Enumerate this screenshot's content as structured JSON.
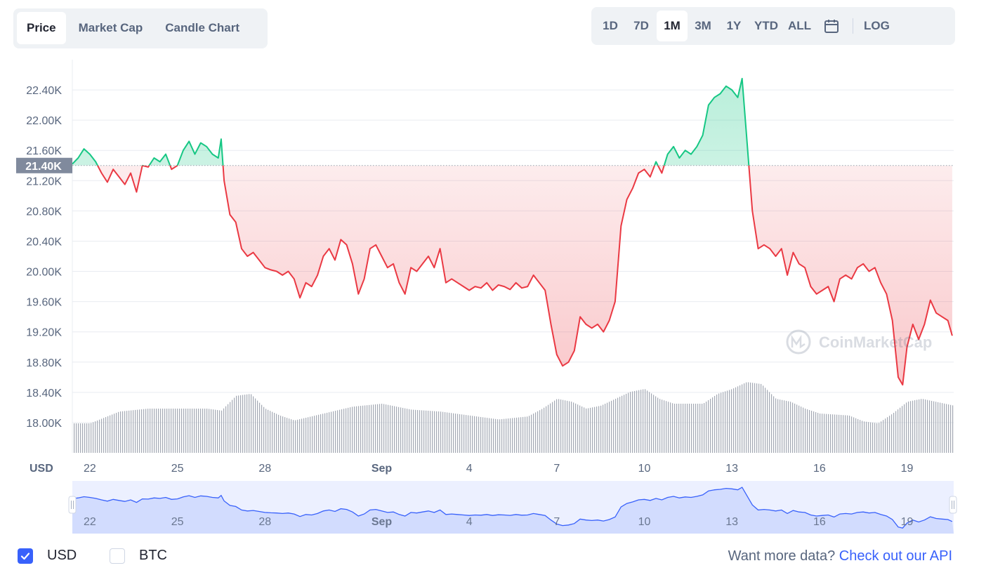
{
  "tabs": [
    "Price",
    "Market Cap",
    "Candle Chart"
  ],
  "active_tab": "Price",
  "ranges": [
    "1D",
    "7D",
    "1M",
    "3M",
    "1Y",
    "YTD",
    "ALL"
  ],
  "active_range": "1M",
  "icons": {
    "calendar": "calendar-icon",
    "logo": "coinmarketcap-logo-icon",
    "check": "check-icon"
  },
  "log_label": "LOG",
  "watermark": "CoinMarketCap",
  "currency_label": "USD",
  "legend": {
    "usd": "USD",
    "btc": "BTC",
    "usd_checked": true,
    "btc_checked": false
  },
  "api_prompt": "Want more data?",
  "api_link": "Check out our API",
  "colors": {
    "up": "#16c784",
    "down": "#ea3943",
    "navigator": "#3861fb",
    "volume": "#a3a8b3",
    "grid": "#e9ecf1",
    "axis_text": "#58667e",
    "accent": "#3861fb"
  },
  "chart_data": {
    "type": "line",
    "ylabel": "USD",
    "ylim": [
      17.6,
      22.8
    ],
    "yticks": [
      18.0,
      18.4,
      18.8,
      19.2,
      19.6,
      20.0,
      20.4,
      20.8,
      21.2,
      21.6,
      22.0,
      22.4
    ],
    "ytick_labels": [
      "18.00K",
      "18.40K",
      "18.80K",
      "19.20K",
      "19.60K",
      "20.00K",
      "20.40K",
      "20.80K",
      "21.20K",
      "21.60K",
      "22.00K",
      "22.40K"
    ],
    "xlim": [
      21.4,
      51.6
    ],
    "x_ticks": [
      22,
      25,
      28,
      32,
      35,
      38,
      41,
      44,
      47,
      50
    ],
    "x_tick_labels": [
      "22",
      "25",
      "28",
      "Sep",
      "4",
      "7",
      "10",
      "13",
      "16",
      "19"
    ],
    "baseline": 21.4,
    "baseline_label": "21.40K",
    "price_unit": "thousand USD",
    "price_series": [
      [
        21.4,
        21.42
      ],
      [
        21.6,
        21.5
      ],
      [
        21.8,
        21.62
      ],
      [
        22,
        21.55
      ],
      [
        22.2,
        21.45
      ],
      [
        22.4,
        21.3
      ],
      [
        22.6,
        21.18
      ],
      [
        22.8,
        21.35
      ],
      [
        23,
        21.25
      ],
      [
        23.2,
        21.15
      ],
      [
        23.4,
        21.3
      ],
      [
        23.6,
        21.05
      ],
      [
        23.8,
        21.4
      ],
      [
        24,
        21.38
      ],
      [
        24.2,
        21.5
      ],
      [
        24.4,
        21.45
      ],
      [
        24.6,
        21.55
      ],
      [
        24.8,
        21.35
      ],
      [
        25,
        21.4
      ],
      [
        25.2,
        21.6
      ],
      [
        25.4,
        21.72
      ],
      [
        25.6,
        21.55
      ],
      [
        25.8,
        21.7
      ],
      [
        26,
        21.65
      ],
      [
        26.2,
        21.55
      ],
      [
        26.4,
        21.5
      ],
      [
        26.5,
        21.75
      ],
      [
        26.6,
        21.2
      ],
      [
        26.8,
        20.75
      ],
      [
        27,
        20.65
      ],
      [
        27.2,
        20.3
      ],
      [
        27.4,
        20.2
      ],
      [
        27.6,
        20.25
      ],
      [
        27.8,
        20.15
      ],
      [
        28,
        20.05
      ],
      [
        28.2,
        20.02
      ],
      [
        28.4,
        20.0
      ],
      [
        28.6,
        19.95
      ],
      [
        28.8,
        20.0
      ],
      [
        29,
        19.9
      ],
      [
        29.2,
        19.65
      ],
      [
        29.4,
        19.85
      ],
      [
        29.6,
        19.8
      ],
      [
        29.8,
        19.95
      ],
      [
        30,
        20.2
      ],
      [
        30.2,
        20.3
      ],
      [
        30.4,
        20.15
      ],
      [
        30.6,
        20.42
      ],
      [
        30.8,
        20.35
      ],
      [
        31,
        20.1
      ],
      [
        31.2,
        19.7
      ],
      [
        31.4,
        19.9
      ],
      [
        31.6,
        20.3
      ],
      [
        31.8,
        20.35
      ],
      [
        32,
        20.2
      ],
      [
        32.2,
        20.05
      ],
      [
        32.4,
        20.1
      ],
      [
        32.6,
        19.85
      ],
      [
        32.8,
        19.7
      ],
      [
        33,
        20.05
      ],
      [
        33.2,
        20.0
      ],
      [
        33.4,
        20.1
      ],
      [
        33.6,
        20.2
      ],
      [
        33.8,
        20.05
      ],
      [
        34,
        20.3
      ],
      [
        34.2,
        19.85
      ],
      [
        34.4,
        19.9
      ],
      [
        34.6,
        19.85
      ],
      [
        34.8,
        19.8
      ],
      [
        35,
        19.75
      ],
      [
        35.2,
        19.8
      ],
      [
        35.4,
        19.78
      ],
      [
        35.6,
        19.85
      ],
      [
        35.8,
        19.75
      ],
      [
        36,
        19.82
      ],
      [
        36.2,
        19.8
      ],
      [
        36.4,
        19.76
      ],
      [
        36.6,
        19.85
      ],
      [
        36.8,
        19.78
      ],
      [
        37,
        19.8
      ],
      [
        37.2,
        19.95
      ],
      [
        37.4,
        19.85
      ],
      [
        37.6,
        19.75
      ],
      [
        37.8,
        19.3
      ],
      [
        38,
        18.9
      ],
      [
        38.2,
        18.75
      ],
      [
        38.4,
        18.8
      ],
      [
        38.6,
        18.95
      ],
      [
        38.8,
        19.4
      ],
      [
        39,
        19.3
      ],
      [
        39.2,
        19.25
      ],
      [
        39.4,
        19.3
      ],
      [
        39.6,
        19.2
      ],
      [
        39.8,
        19.35
      ],
      [
        40,
        19.6
      ],
      [
        40.2,
        20.6
      ],
      [
        40.4,
        20.95
      ],
      [
        40.6,
        21.1
      ],
      [
        40.8,
        21.3
      ],
      [
        41,
        21.35
      ],
      [
        41.2,
        21.25
      ],
      [
        41.4,
        21.45
      ],
      [
        41.6,
        21.3
      ],
      [
        41.8,
        21.55
      ],
      [
        42,
        21.65
      ],
      [
        42.2,
        21.5
      ],
      [
        42.4,
        21.6
      ],
      [
        42.6,
        21.55
      ],
      [
        42.8,
        21.65
      ],
      [
        43,
        21.8
      ],
      [
        43.2,
        22.2
      ],
      [
        43.4,
        22.3
      ],
      [
        43.6,
        22.35
      ],
      [
        43.8,
        22.45
      ],
      [
        44,
        22.4
      ],
      [
        44.2,
        22.3
      ],
      [
        44.35,
        22.55
      ],
      [
        44.5,
        21.8
      ],
      [
        44.7,
        20.8
      ],
      [
        44.9,
        20.3
      ],
      [
        45.1,
        20.35
      ],
      [
        45.3,
        20.3
      ],
      [
        45.5,
        20.2
      ],
      [
        45.7,
        20.3
      ],
      [
        45.9,
        19.95
      ],
      [
        46.1,
        20.25
      ],
      [
        46.3,
        20.1
      ],
      [
        46.5,
        20.05
      ],
      [
        46.7,
        19.8
      ],
      [
        46.9,
        19.7
      ],
      [
        47.1,
        19.75
      ],
      [
        47.3,
        19.8
      ],
      [
        47.5,
        19.6
      ],
      [
        47.7,
        19.9
      ],
      [
        47.9,
        19.95
      ],
      [
        48.1,
        19.9
      ],
      [
        48.3,
        20.05
      ],
      [
        48.5,
        20.1
      ],
      [
        48.7,
        20.0
      ],
      [
        48.9,
        20.05
      ],
      [
        49.1,
        19.85
      ],
      [
        49.3,
        19.7
      ],
      [
        49.5,
        19.35
      ],
      [
        49.7,
        18.6
      ],
      [
        49.85,
        18.5
      ],
      [
        50,
        19.0
      ],
      [
        50.2,
        19.3
      ],
      [
        50.4,
        19.1
      ],
      [
        50.6,
        19.3
      ],
      [
        50.8,
        19.62
      ],
      [
        51,
        19.45
      ],
      [
        51.2,
        19.4
      ],
      [
        51.4,
        19.35
      ],
      [
        51.55,
        19.15
      ]
    ],
    "volume_series": [
      [
        21.4,
        0.3
      ],
      [
        22,
        0.3
      ],
      [
        23,
        0.42
      ],
      [
        24,
        0.45
      ],
      [
        25,
        0.45
      ],
      [
        26,
        0.45
      ],
      [
        26.5,
        0.43
      ],
      [
        27,
        0.58
      ],
      [
        27.5,
        0.6
      ],
      [
        28,
        0.45
      ],
      [
        28.5,
        0.38
      ],
      [
        29,
        0.33
      ],
      [
        30,
        0.4
      ],
      [
        31,
        0.47
      ],
      [
        32,
        0.5
      ],
      [
        33,
        0.44
      ],
      [
        34,
        0.42
      ],
      [
        35,
        0.38
      ],
      [
        36,
        0.34
      ],
      [
        37,
        0.37
      ],
      [
        37.5,
        0.45
      ],
      [
        38,
        0.55
      ],
      [
        38.5,
        0.52
      ],
      [
        39,
        0.45
      ],
      [
        39.5,
        0.48
      ],
      [
        40,
        0.55
      ],
      [
        40.5,
        0.62
      ],
      [
        41,
        0.65
      ],
      [
        41.5,
        0.55
      ],
      [
        42,
        0.5
      ],
      [
        43,
        0.5
      ],
      [
        43.5,
        0.6
      ],
      [
        44,
        0.65
      ],
      [
        44.5,
        0.72
      ],
      [
        45,
        0.7
      ],
      [
        45.5,
        0.55
      ],
      [
        46,
        0.52
      ],
      [
        46.5,
        0.45
      ],
      [
        47,
        0.4
      ],
      [
        48,
        0.38
      ],
      [
        48.5,
        0.32
      ],
      [
        49,
        0.3
      ],
      [
        49.5,
        0.4
      ],
      [
        50,
        0.52
      ],
      [
        50.5,
        0.55
      ],
      [
        51.6,
        0.48
      ]
    ]
  }
}
